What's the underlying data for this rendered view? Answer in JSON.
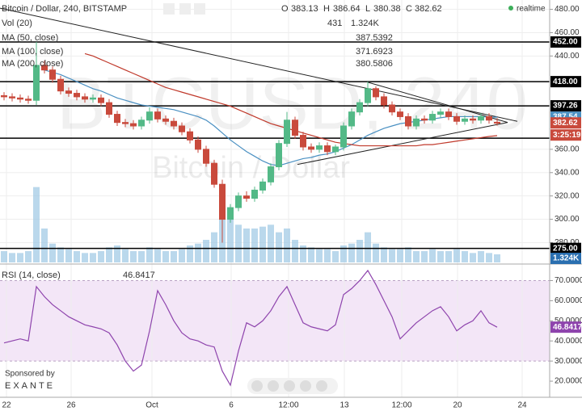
{
  "chart_data": {
    "type": "candlestick",
    "title": "Bitcoin / Dollar, 240, BITSTAMP",
    "watermark": "BTCUSD, 240",
    "watermark_sub": "Bitcoin / Dollar",
    "ohlc_labels": [
      "O",
      "H",
      "L",
      "C"
    ],
    "ohlc_last": [
      383.13,
      386.64,
      380.38,
      382.62
    ],
    "realtime": "realtime",
    "up_color": "#53b987",
    "down_color": "#c94a3c",
    "open": [
      406,
      405,
      404,
      403,
      402,
      432,
      428,
      420,
      410,
      408,
      405,
      403,
      404,
      400,
      390,
      383,
      382,
      380,
      385,
      392,
      386,
      384,
      380,
      375,
      368,
      360,
      348,
      330,
      300,
      310,
      320,
      318,
      325,
      332,
      345,
      365,
      385,
      372,
      362,
      360,
      363,
      358,
      362,
      380,
      392,
      400,
      412,
      405,
      398,
      392,
      388,
      380,
      386,
      385,
      390,
      392,
      388,
      384,
      386,
      385,
      388,
      383.13
    ],
    "high": [
      409,
      408,
      407,
      406,
      452,
      436,
      431,
      423,
      413,
      411,
      408,
      407,
      407,
      403,
      393,
      386,
      385,
      388,
      396,
      395,
      389,
      387,
      383,
      378,
      371,
      363,
      351,
      334,
      313,
      323,
      324,
      328,
      335,
      348,
      368,
      392,
      388,
      375,
      365,
      366,
      366,
      364,
      383,
      395,
      403,
      418,
      414,
      408,
      401,
      395,
      391,
      389,
      389,
      393,
      395,
      395,
      391,
      389,
      389,
      391,
      391,
      386.64
    ],
    "low": [
      402,
      401,
      400,
      399,
      398,
      425,
      417,
      407,
      405,
      402,
      400,
      400,
      397,
      387,
      380,
      379,
      377,
      377,
      382,
      383,
      381,
      377,
      372,
      365,
      357,
      345,
      327,
      280,
      297,
      307,
      315,
      315,
      322,
      329,
      342,
      362,
      369,
      359,
      357,
      357,
      355,
      355,
      359,
      377,
      389,
      397,
      402,
      395,
      389,
      385,
      377,
      377,
      382,
      382,
      387,
      385,
      381,
      381,
      382,
      382,
      382,
      380.38
    ],
    "close": [
      405,
      404,
      403,
      402,
      432,
      428,
      420,
      410,
      408,
      405,
      403,
      404,
      400,
      390,
      383,
      382,
      380,
      385,
      392,
      386,
      384,
      380,
      375,
      368,
      360,
      348,
      330,
      300,
      310,
      320,
      318,
      325,
      332,
      345,
      365,
      385,
      372,
      362,
      360,
      363,
      358,
      362,
      380,
      392,
      400,
      412,
      405,
      398,
      392,
      388,
      380,
      386,
      385,
      390,
      392,
      388,
      384,
      386,
      385,
      388,
      385,
      382.62
    ],
    "countdown": "3:25:19",
    "volume_name": "Vol (20)",
    "volume_color": "#9cc7e4",
    "volume": [
      600,
      500,
      500,
      600,
      4000,
      1800,
      1000,
      800,
      700,
      600,
      500,
      500,
      600,
      800,
      900,
      700,
      600,
      600,
      800,
      700,
      600,
      600,
      700,
      900,
      1000,
      1200,
      1600,
      3500,
      2800,
      2000,
      1800,
      1800,
      1900,
      2000,
      1600,
      1800,
      1200,
      900,
      800,
      700,
      700,
      600,
      900,
      1000,
      1200,
      1600,
      1000,
      800,
      700,
      700,
      800,
      600,
      600,
      700,
      600,
      600,
      700,
      600,
      500,
      600,
      500,
      431
    ],
    "volume_ma": {
      "value": 1324,
      "label": "1.324K"
    },
    "volume_ylim": [
      0,
      6000
    ],
    "series": [
      {
        "name": "MA (50, close)",
        "color": "#4a90c2",
        "values": [
          null,
          null,
          null,
          null,
          null,
          428,
          426,
          424,
          421,
          418,
          415,
          412,
          410,
          407,
          404,
          402,
          400,
          398,
          397,
          396,
          395,
          394,
          392,
          390,
          388,
          385,
          380,
          374,
          368,
          363,
          358,
          354,
          350,
          347,
          346,
          348,
          350,
          352,
          353,
          355,
          356,
          358,
          361,
          364,
          368,
          372,
          375,
          378,
          380,
          382,
          383,
          384,
          385,
          386,
          387,
          388,
          388,
          388,
          388,
          388,
          387.6,
          387.5392
        ]
      },
      {
        "name": "MA (100, close)",
        "color": "#c0392b",
        "values": [
          null,
          null,
          null,
          null,
          null,
          null,
          null,
          null,
          null,
          null,
          442,
          440,
          437,
          434,
          431,
          428,
          425,
          422,
          419,
          416,
          413,
          411,
          409,
          407,
          405,
          403,
          401,
          399,
          397,
          394,
          391,
          388,
          385,
          382,
          380,
          378,
          376,
          374,
          372,
          370,
          368,
          366,
          365,
          364,
          363,
          363,
          363,
          363,
          363,
          363,
          363,
          363,
          364,
          364,
          365,
          366,
          367,
          368,
          369,
          370,
          371,
          371.6923
        ]
      }
    ],
    "ma200": {
      "name": "MA (200, close)",
      "value": 380.5806
    },
    "ma50_axis_label": {
      "value": 387.54,
      "label": "387.54"
    },
    "trend_lines": [
      [
        [
          0,
          481
        ],
        [
          64,
          384
        ]
      ],
      [
        [
          45.5,
          417.5
        ],
        [
          62.8,
          383
        ]
      ],
      [
        [
          36.8,
          347
        ],
        [
          62.8,
          383
        ]
      ]
    ],
    "levels": [
      452,
      418,
      397.26,
      369.5,
      275
    ],
    "level_labels": [
      "452.00",
      "418.00",
      "397.26",
      null,
      "275.00"
    ],
    "xlim": [
      0,
      68
    ],
    "xticks": [
      {
        "value": 0.8,
        "label": "22"
      },
      {
        "value": 8.8,
        "label": "26"
      },
      {
        "value": 18.8,
        "label": "Oct"
      },
      {
        "value": 28.6,
        "label": "6"
      },
      {
        "value": 35.7,
        "label": "12:00"
      },
      {
        "value": 42.6,
        "label": "13"
      },
      {
        "value": 49.7,
        "label": "12:00"
      },
      {
        "value": 56.6,
        "label": "20"
      },
      {
        "value": 64.6,
        "label": "24"
      }
    ],
    "ylim": [
      263,
      488
    ],
    "yticks": [
      {
        "value": 480,
        "label": "480.00"
      },
      {
        "value": 460,
        "label": "460.00"
      },
      {
        "value": 440,
        "label": "440.00"
      },
      {
        "value": 360,
        "label": "360.00"
      },
      {
        "value": 340,
        "label": "340.00"
      },
      {
        "value": 320,
        "label": "320.00"
      },
      {
        "value": 300,
        "label": "300.00"
      },
      {
        "value": 280,
        "label": "280.00"
      }
    ],
    "grid": true,
    "rsi": {
      "name": "RSI (14, close)",
      "color": "#8e44ad",
      "values": [
        39,
        40,
        41,
        40,
        67,
        62,
        58,
        55,
        52,
        50,
        48,
        47,
        46,
        44,
        38,
        30,
        25,
        28,
        45,
        65,
        58,
        50,
        44,
        41,
        40,
        38,
        37,
        25,
        18,
        35,
        49,
        47,
        50,
        55,
        62,
        67,
        58,
        49,
        47,
        46,
        45,
        48,
        63,
        66,
        70,
        75,
        68,
        60,
        52,
        41,
        45,
        49,
        52,
        55,
        57,
        52,
        45,
        48,
        50,
        55,
        49,
        46.8417
      ],
      "band": [
        30,
        70
      ],
      "ylim": [
        12,
        77
      ],
      "yticks": [
        {
          "value": 70,
          "label": "70.0000"
        },
        {
          "value": 60,
          "label": "60.0000"
        },
        {
          "value": 50,
          "label": "50.0000"
        },
        {
          "value": 40,
          "label": "40.0000"
        },
        {
          "value": 30,
          "label": "30.0000"
        },
        {
          "value": 20,
          "label": "20.0000"
        }
      ]
    },
    "sponsor": "Sponsored by",
    "sponsor_name": "EXANTE"
  }
}
